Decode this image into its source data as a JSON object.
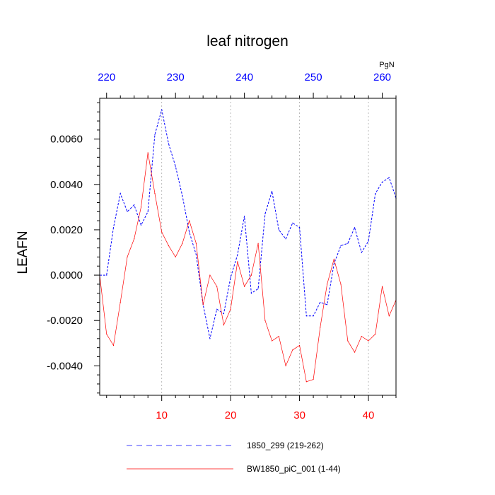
{
  "chart_data": {
    "type": "line",
    "title": "leaf nitrogen",
    "ylabel": "LEAFN",
    "top_axis_unit": "PgN",
    "xlim": [
      1,
      44
    ],
    "ylim": [
      -0.0053,
      0.0078
    ],
    "yticks": [
      -0.004,
      -0.002,
      0.0,
      0.002,
      0.004,
      0.006
    ],
    "ytick_labels": [
      "-0.0040",
      "-0.0020",
      "0.0000",
      "0.0020",
      "0.0040",
      "0.0060"
    ],
    "xticks_bottom": [
      10,
      20,
      30,
      40
    ],
    "xtick_labels_bottom": [
      "10",
      "20",
      "30",
      "40"
    ],
    "xticks_top_values": [
      220,
      230,
      240,
      250,
      260
    ],
    "xtick_labels_top": [
      "220",
      "230",
      "240",
      "250",
      "260"
    ],
    "top_axis_offset": 218,
    "series": [
      {
        "name": "1850_299 (219-262)",
        "color": "#0000ff",
        "style": "dashed",
        "x": [
          1,
          2,
          3,
          4,
          5,
          6,
          7,
          8,
          9,
          10,
          11,
          12,
          13,
          14,
          15,
          16,
          17,
          18,
          19,
          20,
          21,
          22,
          23,
          24,
          25,
          26,
          27,
          28,
          29,
          30,
          31,
          32,
          33,
          34,
          35,
          36,
          37,
          38,
          39,
          40,
          41,
          42,
          43,
          44
        ],
        "values": [
          0.0,
          0.0,
          0.0021,
          0.0036,
          0.0028,
          0.0031,
          0.0022,
          0.0028,
          0.0062,
          0.0073,
          0.0058,
          0.0048,
          0.0035,
          0.0019,
          0.0009,
          -0.0013,
          -0.0028,
          -0.0015,
          -0.0017,
          -0.0001,
          0.0009,
          0.0026,
          -0.0008,
          -0.0006,
          0.0027,
          0.0037,
          0.002,
          0.0016,
          0.0023,
          0.0021,
          -0.0018,
          -0.0018,
          -0.0012,
          -0.0013,
          0.0005,
          0.0013,
          0.0014,
          0.0021,
          0.001,
          0.0015,
          0.0036,
          0.0041,
          0.0043,
          0.0034
        ]
      },
      {
        "name": "BW1850_piC_001 (1-44)",
        "color": "#ff0000",
        "style": "solid",
        "x": [
          1,
          2,
          3,
          4,
          5,
          6,
          7,
          8,
          9,
          10,
          11,
          12,
          13,
          14,
          15,
          16,
          17,
          18,
          19,
          20,
          21,
          22,
          23,
          24,
          25,
          26,
          27,
          28,
          29,
          30,
          31,
          32,
          33,
          34,
          35,
          36,
          37,
          38,
          39,
          40,
          41,
          42,
          43,
          44
        ],
        "values": [
          0.0,
          -0.0026,
          -0.0031,
          -0.0012,
          0.0008,
          0.0016,
          0.003,
          0.0054,
          0.0036,
          0.0019,
          0.0013,
          0.0008,
          0.0014,
          0.0024,
          0.0014,
          -0.0013,
          0.0,
          -0.0005,
          -0.0022,
          -0.0015,
          0.0006,
          -0.0005,
          0.0,
          0.0014,
          -0.002,
          -0.0029,
          -0.0027,
          -0.004,
          -0.0033,
          -0.0031,
          -0.0047,
          -0.0046,
          -0.0023,
          -0.0004,
          0.0007,
          -0.0004,
          -0.0029,
          -0.0034,
          -0.0027,
          -0.0029,
          -0.0026,
          -0.0005,
          -0.0018,
          -0.0011
        ]
      }
    ],
    "legend_position": "bottom",
    "grid": "vertical dotted at bottom-axis major ticks"
  }
}
